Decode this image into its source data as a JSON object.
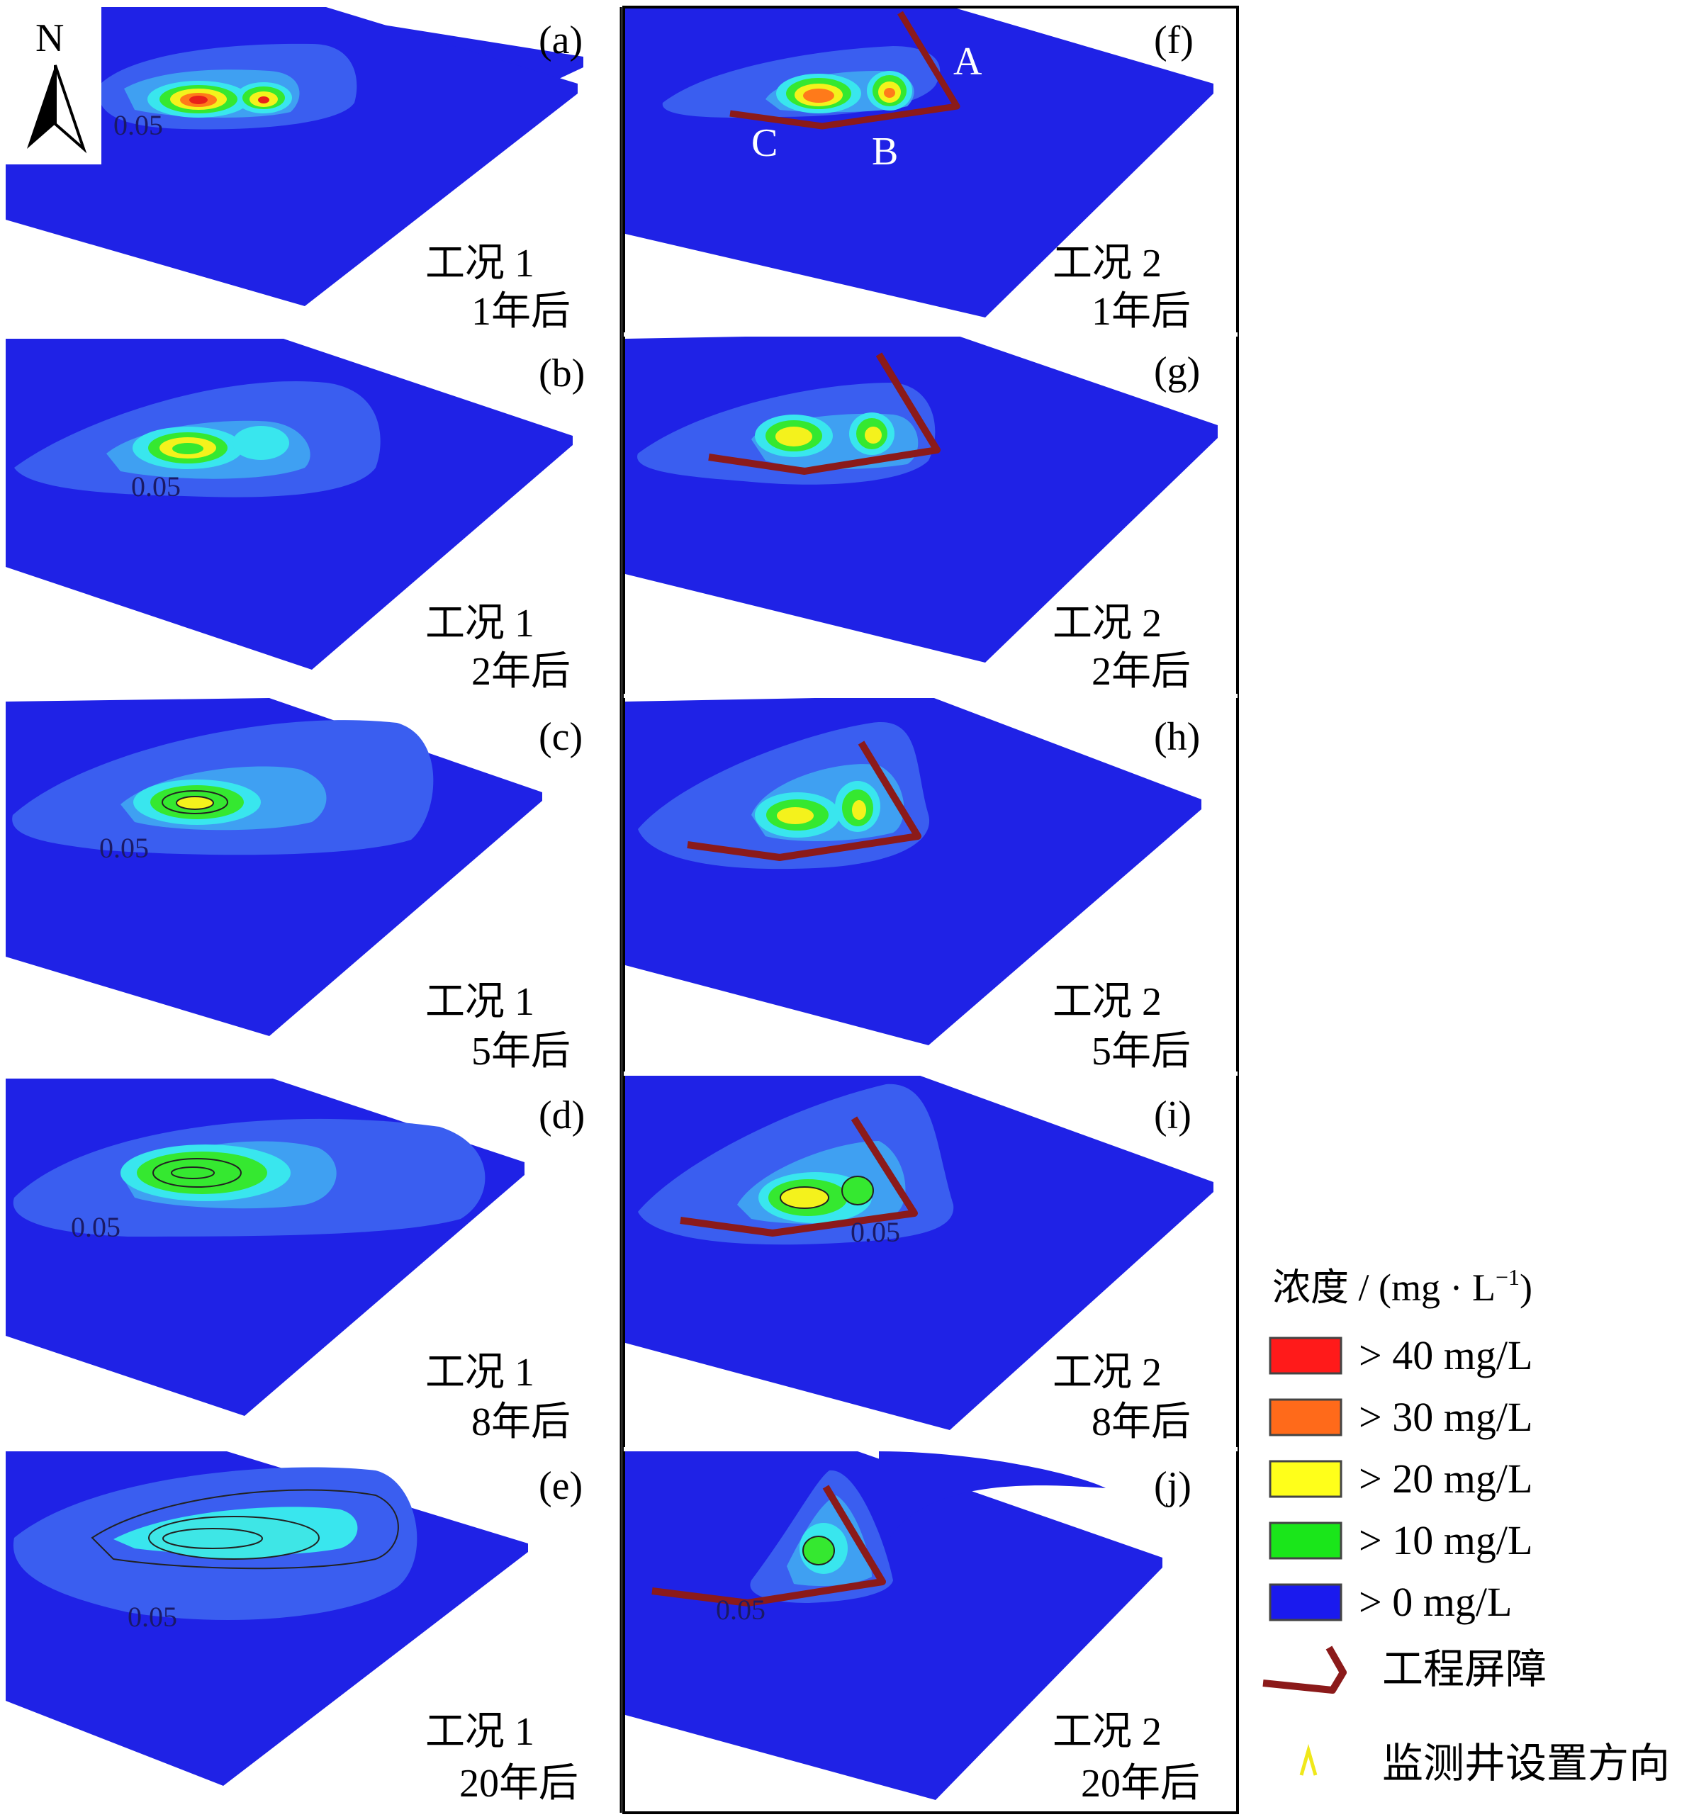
{
  "compass": {
    "label": "N"
  },
  "contour_label": "0.05",
  "panels": [
    {
      "id": "a",
      "tag": "(a)",
      "case": "工况 1",
      "time": "1年后"
    },
    {
      "id": "b",
      "tag": "(b)",
      "case": "工况 1",
      "time": "2年后"
    },
    {
      "id": "c",
      "tag": "(c)",
      "case": "工况 1",
      "time": "5年后"
    },
    {
      "id": "d",
      "tag": "(d)",
      "case": "工况 1",
      "time": "8年后"
    },
    {
      "id": "e",
      "tag": "(e)",
      "case": "工况 1",
      "time": "20年后"
    },
    {
      "id": "f",
      "tag": "(f)",
      "case": "工况 2",
      "time": "1年后"
    },
    {
      "id": "g",
      "tag": "(g)",
      "case": "工况 2",
      "time": "2年后"
    },
    {
      "id": "h",
      "tag": "(h)",
      "case": "工况 2",
      "time": "5年后"
    },
    {
      "id": "i",
      "tag": "(i)",
      "case": "工况 2",
      "time": "8年后"
    },
    {
      "id": "j",
      "tag": "(j)",
      "case": "工况 2",
      "time": "20年后"
    }
  ],
  "barrier_points": {
    "a": "A",
    "b": "B",
    "c": "C"
  },
  "legend": {
    "title": "浓度 / (mg · L",
    "title_sup": "−1",
    "title_end": ")",
    "items": [
      {
        "label": "> 40 mg/L",
        "color": "#ff1a1a"
      },
      {
        "label": "> 30 mg/L",
        "color": "#ff6a1a"
      },
      {
        "label": "> 20 mg/L",
        "color": "#ffff1a"
      },
      {
        "label": "> 10 mg/L",
        "color": "#1ae61a"
      },
      {
        "label": "> 0 mg/L",
        "color": "#1a1aee"
      }
    ],
    "barrier_label": "工程屏障",
    "well_label": "监测井设置方向"
  },
  "colors": {
    "ground": "#1f22e6",
    "halo": "#3a5ef0",
    "light": "#3fa0f2",
    "cyan": "#39e6ee",
    "green": "#35e830",
    "yellow": "#f4f21c",
    "orange": "#ff7a1a",
    "red": "#e8201a",
    "barrier": "#8b1a1a",
    "well_marker": "#f0e81a"
  }
}
